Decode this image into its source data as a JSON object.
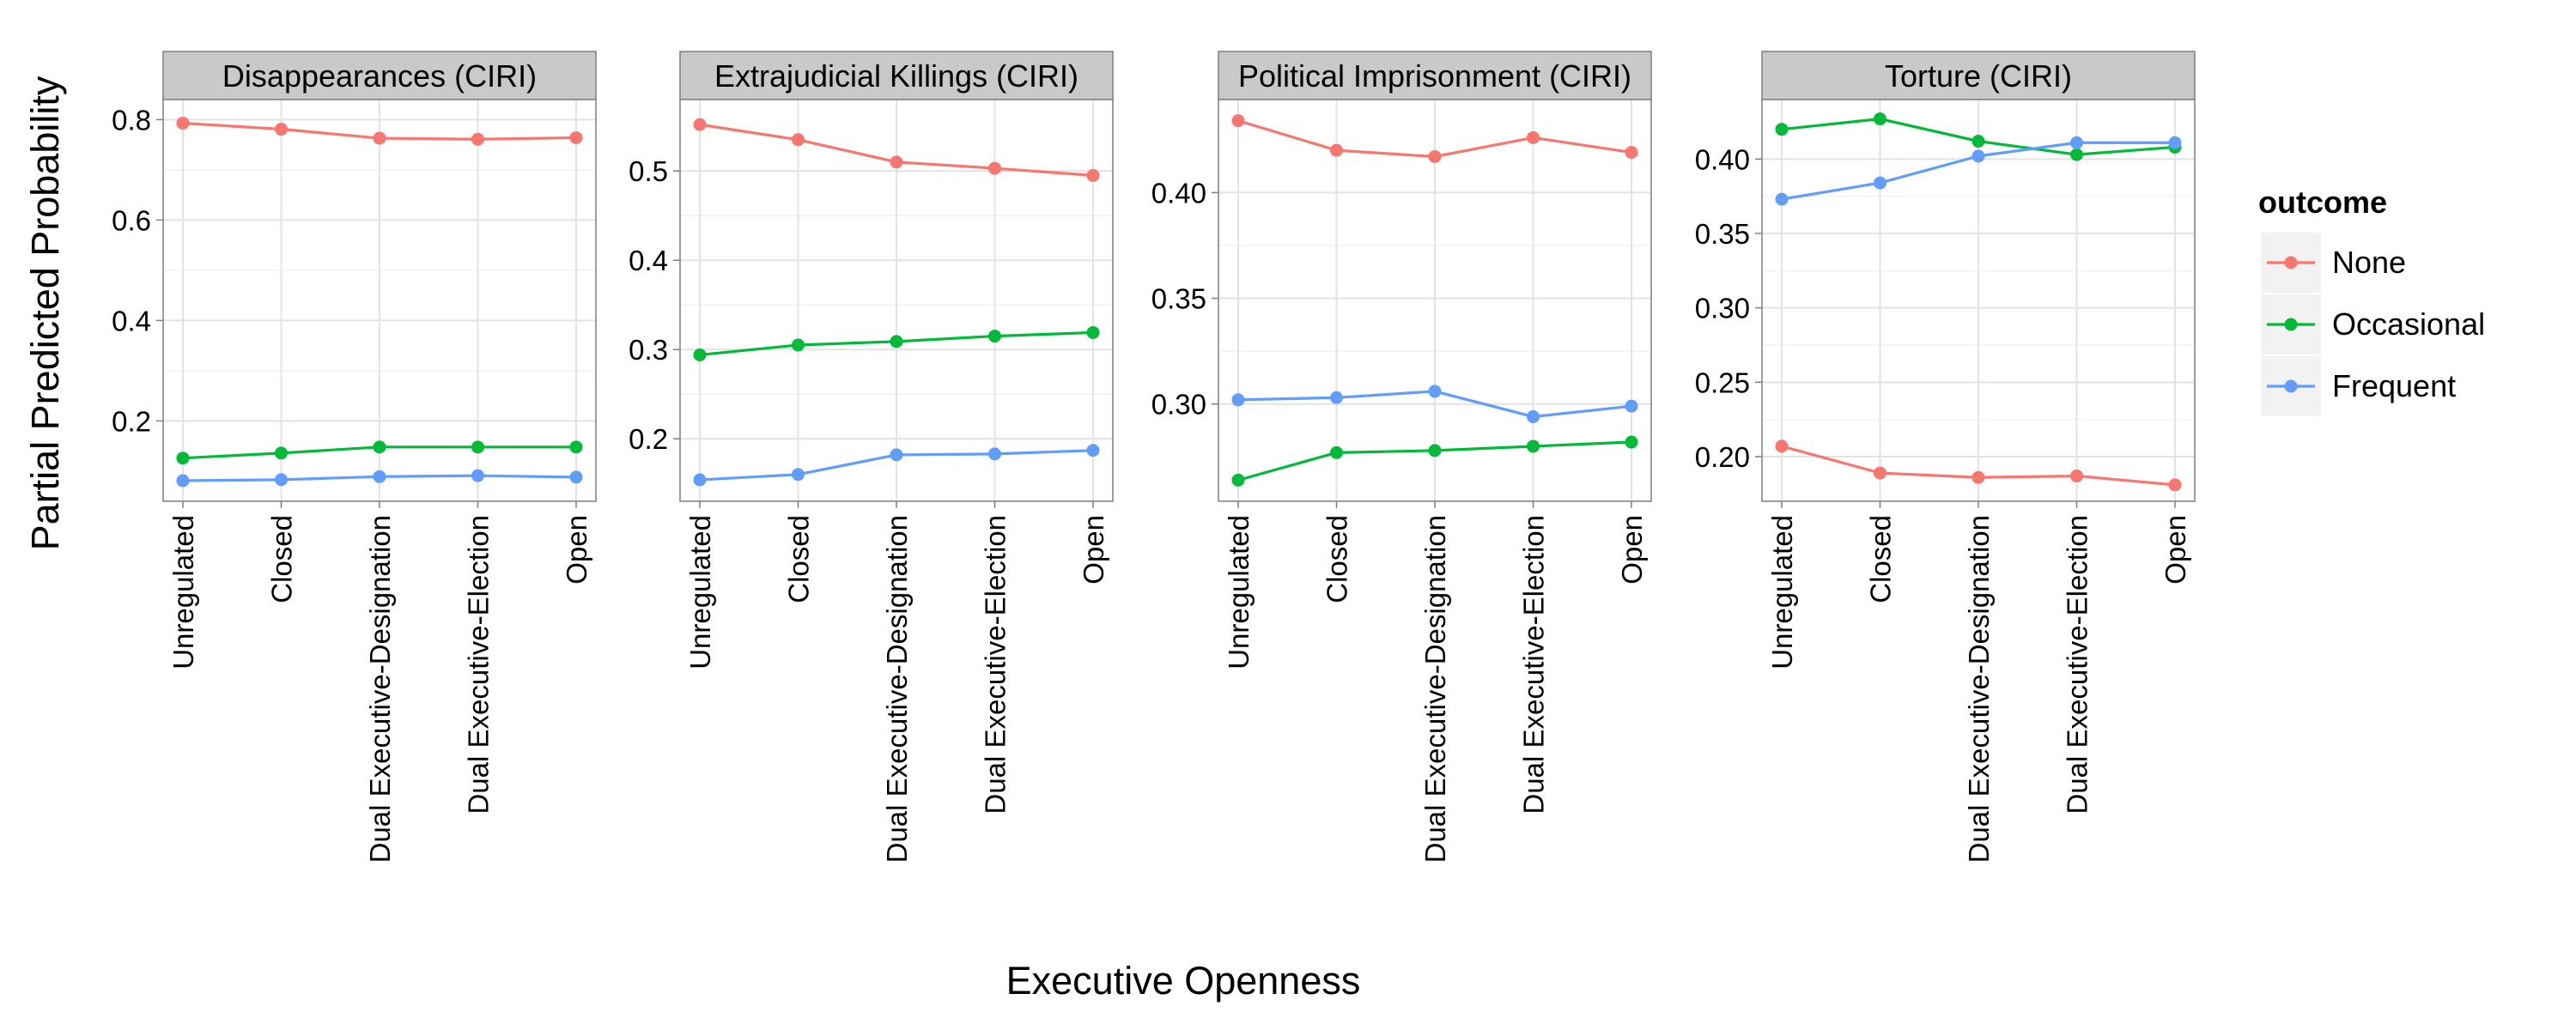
{
  "chart_data": {
    "type": "line",
    "ylabel": "Partial Predicted Probability",
    "xlabel": "Executive Openness",
    "categories": [
      "Unregulated",
      "Closed",
      "Dual Executive-Designation",
      "Dual Executive-Election",
      "Open"
    ],
    "legend": {
      "title": "outcome",
      "placement": "right",
      "entries": [
        {
          "name": "None",
          "color": "#F8766D"
        },
        {
          "name": "Occasional",
          "color": "#00BA38"
        },
        {
          "name": "Frequent",
          "color": "#619CFF"
        }
      ]
    },
    "grid": true,
    "panels": [
      {
        "title": "Disappearances (CIRI)",
        "ylim": [
          0.04,
          0.84
        ],
        "yticks": [
          0.2,
          0.4,
          0.6,
          0.8
        ],
        "ytick_labels": [
          "0.2",
          "0.4",
          "0.6",
          "0.8"
        ],
        "series": [
          {
            "name": "None",
            "values": [
              0.793,
              0.781,
              0.763,
              0.761,
              0.764
            ]
          },
          {
            "name": "Occasional",
            "values": [
              0.126,
              0.136,
              0.148,
              0.148,
              0.148
            ]
          },
          {
            "name": "Frequent",
            "values": [
              0.081,
              0.083,
              0.089,
              0.091,
              0.088
            ]
          }
        ]
      },
      {
        "title": "Extrajudicial Killings (CIRI)",
        "ylim": [
          0.13,
          0.58
        ],
        "yticks": [
          0.2,
          0.3,
          0.4,
          0.5
        ],
        "ytick_labels": [
          "0.2",
          "0.3",
          "0.4",
          "0.5"
        ],
        "series": [
          {
            "name": "None",
            "values": [
              0.552,
              0.535,
              0.51,
              0.503,
              0.495
            ]
          },
          {
            "name": "Occasional",
            "values": [
              0.294,
              0.305,
              0.309,
              0.315,
              0.319
            ]
          },
          {
            "name": "Frequent",
            "values": [
              0.154,
              0.16,
              0.182,
              0.183,
              0.187
            ]
          }
        ]
      },
      {
        "title": "Political Imprisonment (CIRI)",
        "ylim": [
          0.254,
          0.444
        ],
        "yticks": [
          0.3,
          0.35,
          0.4
        ],
        "ytick_labels": [
          "0.30",
          "0.35",
          "0.40"
        ],
        "series": [
          {
            "name": "None",
            "values": [
              0.434,
              0.42,
              0.417,
              0.426,
              0.419
            ]
          },
          {
            "name": "Occasional",
            "values": [
              0.264,
              0.277,
              0.278,
              0.28,
              0.282
            ]
          },
          {
            "name": "Frequent",
            "values": [
              0.302,
              0.303,
              0.306,
              0.294,
              0.299
            ]
          }
        ]
      },
      {
        "title": "Torture (CIRI)",
        "ylim": [
          0.17,
          0.44
        ],
        "yticks": [
          0.2,
          0.25,
          0.3,
          0.35,
          0.4
        ],
        "ytick_labels": [
          "0.20",
          "0.25",
          "0.30",
          "0.35",
          "0.40"
        ],
        "series": [
          {
            "name": "None",
            "values": [
              0.207,
              0.189,
              0.186,
              0.187,
              0.181
            ]
          },
          {
            "name": "Occasional",
            "values": [
              0.42,
              0.427,
              0.412,
              0.403,
              0.408
            ]
          },
          {
            "name": "Frequent",
            "values": [
              0.373,
              0.384,
              0.402,
              0.411,
              0.411
            ]
          }
        ]
      }
    ]
  }
}
